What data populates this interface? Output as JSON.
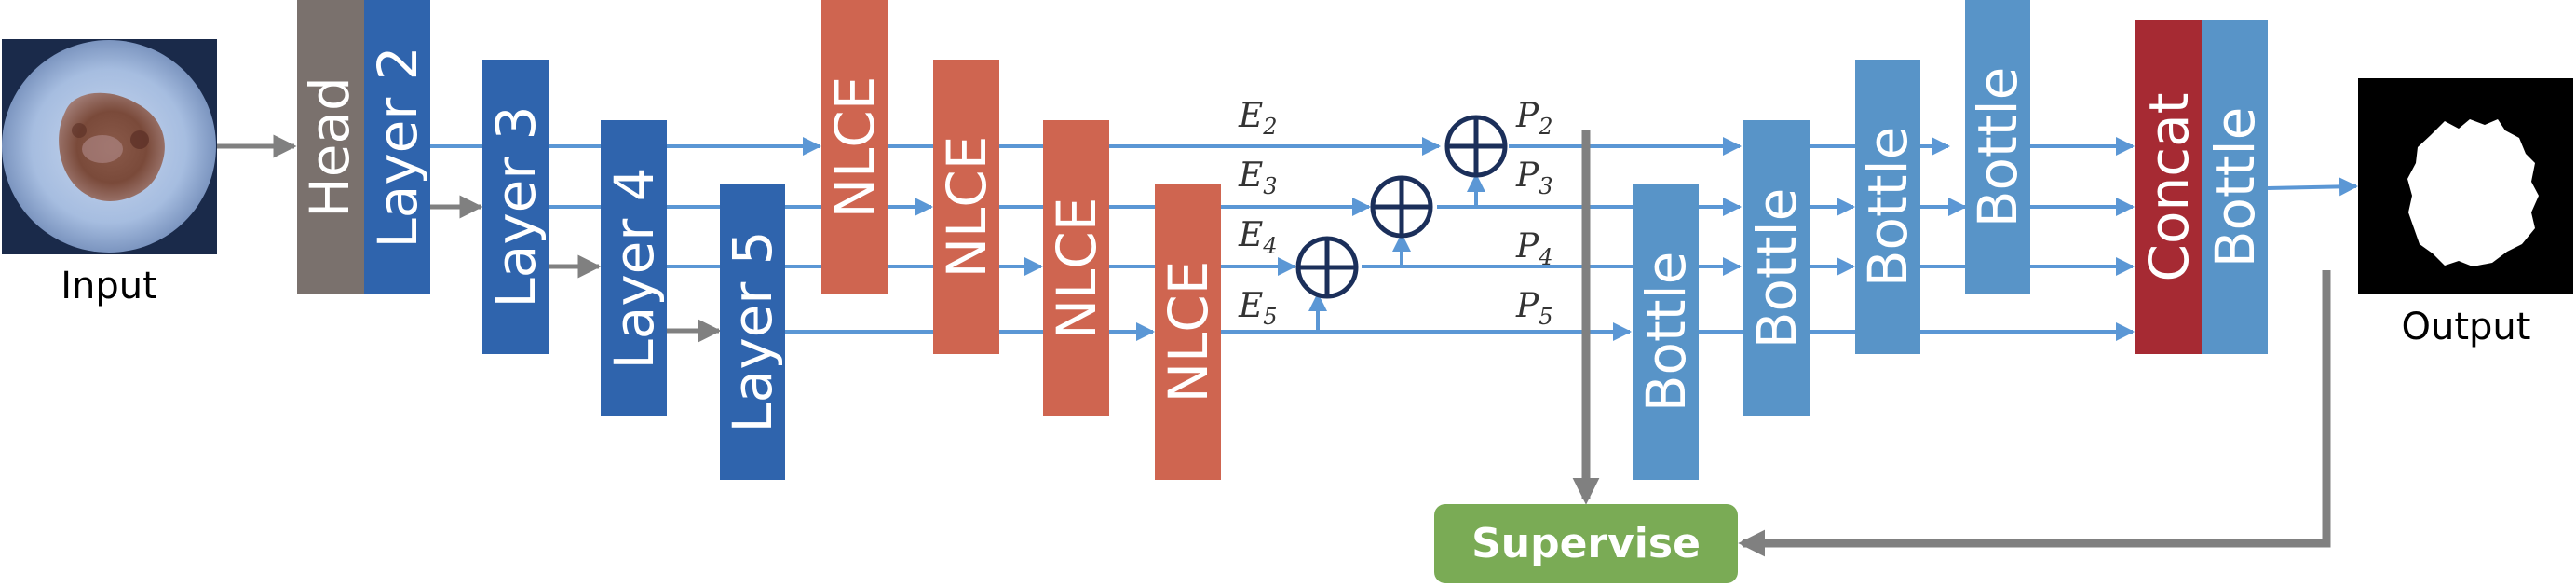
{
  "images": {
    "input_caption": "Input",
    "output_caption": "Output"
  },
  "blocks": {
    "head": "Head",
    "layer2": "Layer 2",
    "layer3": "Layer 3",
    "layer4": "Layer 4",
    "layer5": "Layer 5",
    "nlce": "NLCE",
    "bottle": "Bottle",
    "concat": "Concat"
  },
  "supervise": "Supervise",
  "features": {
    "E2": {
      "base": "E",
      "sub": "2"
    },
    "E3": {
      "base": "E",
      "sub": "3"
    },
    "E4": {
      "base": "E",
      "sub": "4"
    },
    "E5": {
      "base": "E",
      "sub": "5"
    },
    "P2": {
      "base": "P",
      "sub": "2"
    },
    "P3": {
      "base": "P",
      "sub": "3"
    },
    "P4": {
      "base": "P",
      "sub": "4"
    },
    "P5": {
      "base": "P",
      "sub": "5"
    }
  },
  "colors": {
    "head": "#7a716d",
    "layer": "#2f64ad",
    "nlce": "#cf6550",
    "bottle": "#5894c8",
    "concat": "#a62a33",
    "supervise": "#7aab55",
    "arrow_blue": "#5b97d5",
    "arrow_gray": "#808080",
    "plus_circle": "#1b2f5a"
  }
}
